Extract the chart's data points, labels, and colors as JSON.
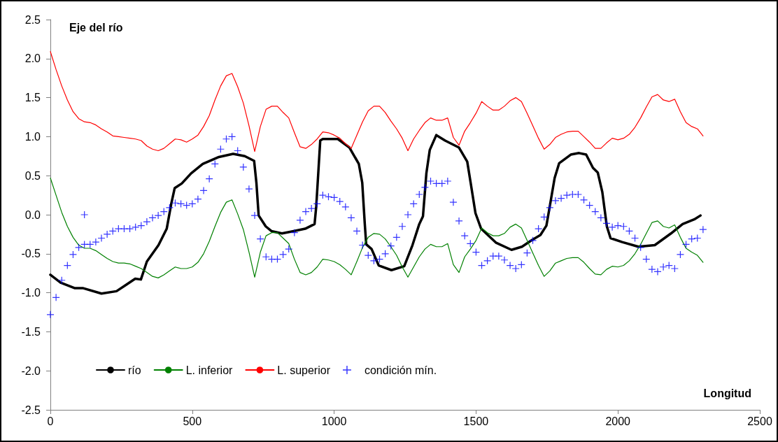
{
  "chart_data": {
    "type": "line",
    "title": "Eje del río",
    "xlabel": "Longitud",
    "x": [
      0,
      20,
      40,
      60,
      80,
      100,
      120,
      140,
      160,
      180,
      200,
      220,
      240,
      260,
      280,
      300,
      320,
      340,
      360,
      380,
      400,
      420,
      440,
      460,
      480,
      500,
      520,
      540,
      560,
      580,
      600,
      620,
      640,
      660,
      680,
      700,
      720,
      740,
      760,
      780,
      800,
      820,
      840,
      860,
      880,
      900,
      920,
      940,
      960,
      980,
      1000,
      1020,
      1040,
      1060,
      1080,
      1100,
      1120,
      1140,
      1160,
      1180,
      1200,
      1220,
      1240,
      1260,
      1280,
      1300,
      1320,
      1340,
      1360,
      1380,
      1400,
      1420,
      1440,
      1460,
      1480,
      1500,
      1520,
      1540,
      1560,
      1580,
      1600,
      1620,
      1640,
      1660,
      1680,
      1700,
      1720,
      1740,
      1760,
      1780,
      1800,
      1820,
      1840,
      1860,
      1880,
      1900,
      1920,
      1940,
      1960,
      1980,
      2000,
      2020,
      2040,
      2060,
      2080,
      2100,
      2120,
      2140,
      2160,
      2180,
      2200,
      2220,
      2240,
      2260,
      2280,
      2300
    ],
    "series": [
      {
        "name": "río",
        "color": "#000000",
        "marker": "none",
        "x": [
          0,
          36,
          85,
          114,
          180,
          233,
          266,
          299,
          319,
          340,
          381,
          410,
          426,
          438,
          463,
          496,
          537,
          594,
          644,
          685,
          718,
          726,
          734,
          759,
          779,
          816,
          857,
          898,
          931,
          937,
          951,
          960,
          1013,
          1054,
          1087,
          1099,
          1108,
          1113,
          1132,
          1157,
          1202,
          1247,
          1276,
          1300,
          1313,
          1325,
          1337,
          1360,
          1391,
          1440,
          1469,
          1481,
          1498,
          1518,
          1571,
          1625,
          1662,
          1695,
          1727,
          1748,
          1760,
          1777,
          1793,
          1834,
          1863,
          1888,
          1912,
          1929,
          1945,
          1961,
          1974,
          2015,
          2072,
          2130,
          2187,
          2228,
          2269,
          2291
        ],
        "values": [
          -0.77,
          -0.87,
          -0.94,
          -0.94,
          -1.01,
          -0.98,
          -0.9,
          -0.82,
          -0.83,
          -0.6,
          -0.39,
          -0.18,
          0.14,
          0.34,
          0.4,
          0.53,
          0.65,
          0.74,
          0.78,
          0.75,
          0.69,
          0.41,
          -0.01,
          -0.15,
          -0.21,
          -0.24,
          -0.21,
          -0.18,
          -0.12,
          0.11,
          0.95,
          0.97,
          0.97,
          0.86,
          0.65,
          0.41,
          -0.12,
          -0.38,
          -0.44,
          -0.65,
          -0.71,
          -0.66,
          -0.39,
          -0.12,
          -0.02,
          0.53,
          0.83,
          1.02,
          0.95,
          0.86,
          0.68,
          0.41,
          0.02,
          -0.18,
          -0.36,
          -0.45,
          -0.41,
          -0.33,
          -0.26,
          -0.14,
          0.11,
          0.47,
          0.66,
          0.77,
          0.79,
          0.77,
          0.6,
          0.54,
          0.29,
          -0.15,
          -0.3,
          -0.35,
          -0.41,
          -0.39,
          -0.24,
          -0.12,
          -0.06,
          -0.01
        ]
      },
      {
        "name": "L. inferior",
        "color": "#008000",
        "marker": "none",
        "values": [
          0.47,
          0.25,
          0.03,
          -0.15,
          -0.29,
          -0.39,
          -0.43,
          -0.43,
          -0.46,
          -0.51,
          -0.56,
          -0.6,
          -0.62,
          -0.62,
          -0.63,
          -0.66,
          -0.69,
          -0.74,
          -0.79,
          -0.81,
          -0.77,
          -0.72,
          -0.67,
          -0.69,
          -0.69,
          -0.67,
          -0.61,
          -0.5,
          -0.34,
          -0.15,
          0.03,
          0.16,
          0.19,
          0.01,
          -0.19,
          -0.48,
          -0.8,
          -0.48,
          -0.27,
          -0.23,
          -0.23,
          -0.3,
          -0.37,
          -0.57,
          -0.74,
          -0.77,
          -0.74,
          -0.67,
          -0.57,
          -0.58,
          -0.6,
          -0.64,
          -0.7,
          -0.77,
          -0.6,
          -0.42,
          -0.29,
          -0.24,
          -0.25,
          -0.31,
          -0.41,
          -0.52,
          -0.67,
          -0.8,
          -0.67,
          -0.54,
          -0.44,
          -0.38,
          -0.41,
          -0.41,
          -0.37,
          -0.64,
          -0.74,
          -0.54,
          -0.44,
          -0.33,
          -0.17,
          -0.23,
          -0.27,
          -0.27,
          -0.24,
          -0.16,
          -0.12,
          -0.17,
          -0.33,
          -0.49,
          -0.65,
          -0.79,
          -0.72,
          -0.62,
          -0.59,
          -0.56,
          -0.55,
          -0.55,
          -0.61,
          -0.69,
          -0.76,
          -0.77,
          -0.7,
          -0.66,
          -0.67,
          -0.65,
          -0.59,
          -0.5,
          -0.38,
          -0.24,
          -0.1,
          -0.08,
          -0.15,
          -0.17,
          -0.13,
          -0.29,
          -0.43,
          -0.48,
          -0.52,
          -0.61
        ]
      },
      {
        "name": "L. superior",
        "color": "#ff0000",
        "marker": "none",
        "values": [
          2.09,
          1.86,
          1.65,
          1.47,
          1.32,
          1.23,
          1.19,
          1.18,
          1.15,
          1.1,
          1.06,
          1.01,
          1.0,
          0.99,
          0.98,
          0.97,
          0.95,
          0.88,
          0.84,
          0.82,
          0.85,
          0.91,
          0.97,
          0.96,
          0.93,
          0.97,
          1.02,
          1.13,
          1.27,
          1.47,
          1.65,
          1.78,
          1.81,
          1.64,
          1.43,
          1.14,
          0.81,
          1.13,
          1.35,
          1.39,
          1.39,
          1.31,
          1.24,
          1.05,
          0.87,
          0.85,
          0.9,
          0.97,
          1.06,
          1.05,
          1.02,
          0.98,
          0.91,
          0.85,
          1.02,
          1.19,
          1.33,
          1.39,
          1.39,
          1.31,
          1.2,
          1.1,
          0.98,
          0.82,
          0.97,
          1.08,
          1.18,
          1.24,
          1.21,
          1.21,
          1.24,
          0.99,
          0.89,
          1.07,
          1.18,
          1.3,
          1.45,
          1.39,
          1.34,
          1.34,
          1.39,
          1.46,
          1.5,
          1.45,
          1.3,
          1.14,
          0.98,
          0.84,
          0.9,
          0.99,
          1.03,
          1.06,
          1.07,
          1.07,
          1.0,
          0.93,
          0.85,
          0.85,
          0.92,
          0.98,
          0.96,
          0.98,
          1.03,
          1.12,
          1.24,
          1.38,
          1.51,
          1.54,
          1.47,
          1.45,
          1.48,
          1.32,
          1.18,
          1.13,
          1.1,
          1.01
        ]
      },
      {
        "name": "condición mín.",
        "type": "scatter",
        "color": "#0000ff",
        "marker": "cross",
        "values": [
          -1.28,
          -1.06,
          -0.84,
          -0.65,
          -0.51,
          -0.42,
          -0.38,
          -0.38,
          -0.35,
          -0.3,
          -0.25,
          -0.21,
          -0.18,
          -0.18,
          -0.18,
          -0.16,
          -0.14,
          -0.09,
          -0.04,
          -0.01,
          0.04,
          0.09,
          0.15,
          0.14,
          0.12,
          0.14,
          0.2,
          0.31,
          0.46,
          0.65,
          0.84,
          0.97,
          1.0,
          0.82,
          0.61,
          0.33,
          -0.01,
          -0.31,
          -0.54,
          -0.57,
          -0.57,
          -0.51,
          -0.44,
          -0.23,
          -0.07,
          0.04,
          0.08,
          0.14,
          0.25,
          0.23,
          0.22,
          0.17,
          0.1,
          -0.04,
          -0.21,
          -0.39,
          -0.52,
          -0.59,
          -0.57,
          -0.5,
          -0.4,
          -0.29,
          -0.15,
          0.0,
          0.14,
          0.26,
          0.35,
          0.43,
          0.4,
          0.4,
          0.43,
          0.16,
          -0.08,
          -0.27,
          -0.37,
          -0.48,
          -0.65,
          -0.59,
          -0.53,
          -0.53,
          -0.58,
          -0.65,
          -0.69,
          -0.64,
          -0.49,
          -0.33,
          -0.18,
          -0.03,
          0.09,
          0.18,
          0.21,
          0.25,
          0.26,
          0.26,
          0.19,
          0.12,
          0.04,
          -0.04,
          -0.11,
          -0.16,
          -0.14,
          -0.15,
          -0.21,
          -0.3,
          -0.42,
          -0.57,
          -0.7,
          -0.73,
          -0.67,
          -0.65,
          -0.69,
          -0.51,
          -0.38,
          -0.31,
          -0.3,
          -0.19
        ]
      },
      {
        "type": "scatter",
        "color": "#0000ff",
        "marker": "cross",
        "x": [
          120
        ],
        "values": [
          0.0
        ]
      }
    ],
    "xlim": [
      0,
      2500
    ],
    "xticks": [
      0,
      500,
      1000,
      1500,
      2000,
      2500
    ],
    "ylim": [
      -2.5,
      2.5
    ],
    "yticks": [
      {
        "value": -2.5,
        "label": "-2.5"
      },
      {
        "value": -2.0,
        "label": "-2.0"
      },
      {
        "value": -1.5,
        "label": "-1.5"
      },
      {
        "value": -1.0,
        "label": "-1.0"
      },
      {
        "value": -0.5,
        "label": "-0.5"
      },
      {
        "value": 0,
        "label": "0.0"
      },
      {
        "value": 0.5,
        "label": "0.5"
      },
      {
        "value": 1.0,
        "label": "1.0"
      },
      {
        "value": 1.5,
        "label": "1.5"
      },
      {
        "value": 2.0,
        "label": "2.0"
      },
      {
        "value": 2.5,
        "label": "2.5"
      }
    ],
    "grid": false,
    "legend": "bottom left",
    "line_style": "solid"
  }
}
